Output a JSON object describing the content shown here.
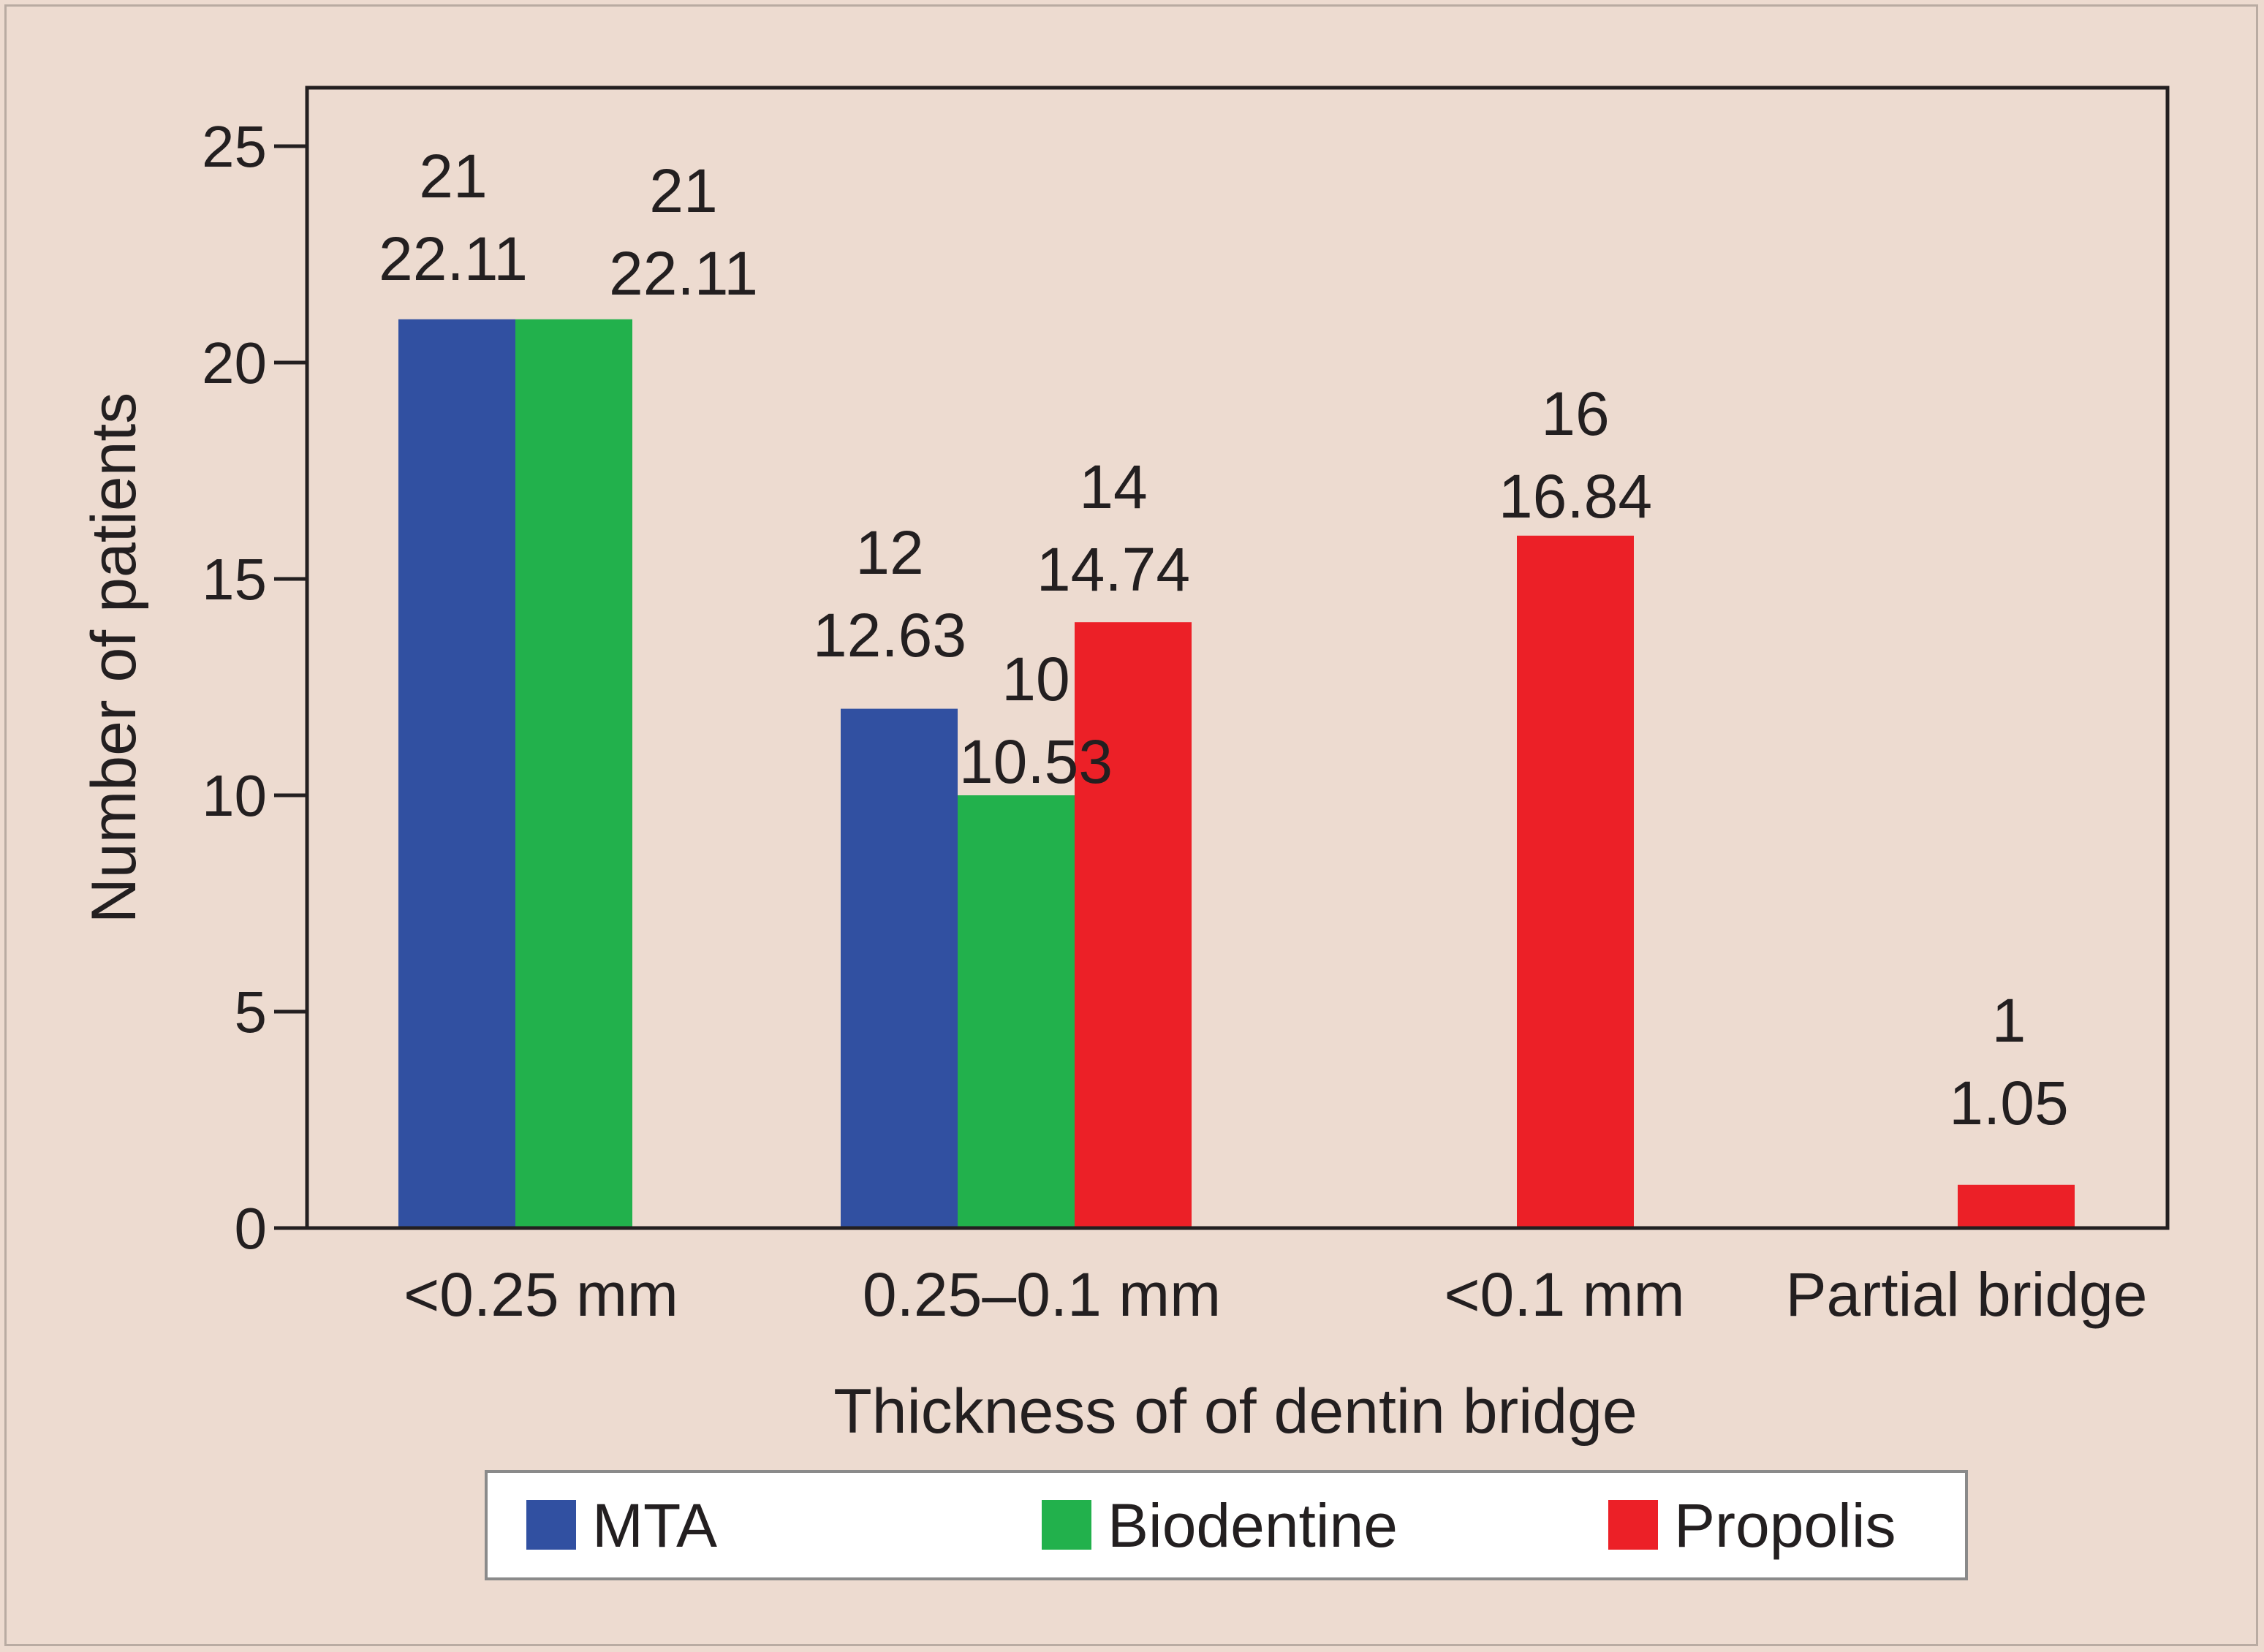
{
  "chart_data": {
    "type": "bar",
    "title": "",
    "xlabel": "Thickness of of dentin bridge",
    "ylabel": "Number of patients",
    "categories": [
      "<0.25 mm",
      "0.25–0.1 mm",
      "<0.1 mm",
      "Partial bridge"
    ],
    "ylim": [
      0,
      25
    ],
    "yticks": [
      "0",
      "5",
      "10",
      "15",
      "20",
      "25"
    ],
    "series": [
      {
        "name": "MTA",
        "color": "#3150a1",
        "values": [
          21,
          12,
          null,
          null
        ],
        "labels": [
          [
            "21",
            "22.11"
          ],
          [
            "12",
            "12.63"
          ],
          null,
          null
        ]
      },
      {
        "name": "Biodentine",
        "color": "#22b14c",
        "values": [
          21,
          10,
          null,
          null
        ],
        "labels": [
          [
            "21",
            "22.11"
          ],
          [
            "10",
            "10.53"
          ],
          null,
          null
        ]
      },
      {
        "name": "Propolis",
        "color": "#ec2027",
        "values": [
          null,
          14,
          16,
          1
        ],
        "labels": [
          null,
          [
            "14",
            "14.74"
          ],
          [
            "16",
            "16.84"
          ],
          [
            "1",
            "1.05"
          ]
        ]
      }
    ],
    "legend_position": "bottom",
    "grid": false
  }
}
